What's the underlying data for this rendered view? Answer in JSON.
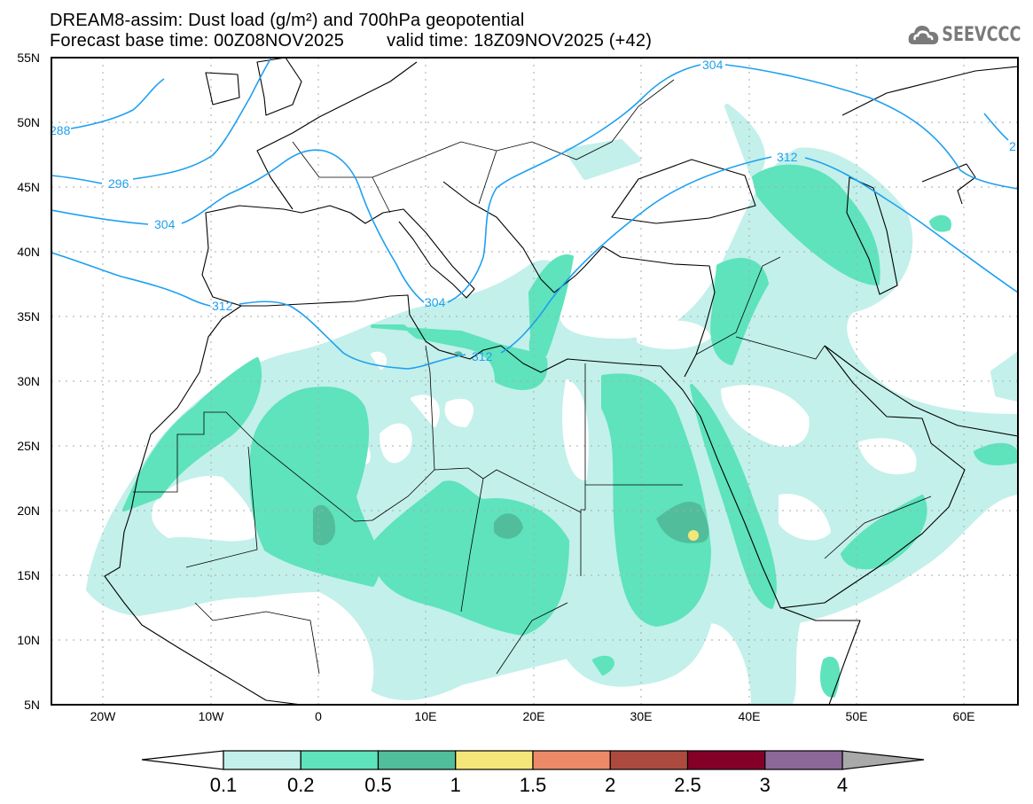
{
  "header": {
    "title": "DREAM8-assim: Dust load (g/m²) and 700hPa geopotential",
    "base_time": "Forecast base time: 00Z08NOV2025",
    "valid_time": "valid time: 18Z09NOV2025 (+42)"
  },
  "logo": {
    "text": "SEEVCCC",
    "icon": "cloud-icon"
  },
  "axes": {
    "lat_labels": [
      "55N",
      "50N",
      "45N",
      "40N",
      "35N",
      "30N",
      "25N",
      "20N",
      "15N",
      "10N",
      "5N"
    ],
    "lon_labels": [
      "20W",
      "10W",
      "0",
      "10E",
      "20E",
      "30E",
      "40E",
      "50E",
      "60E"
    ]
  },
  "contours": {
    "color": "#1ea0f0",
    "labels": [
      "288",
      "296",
      "304",
      "304",
      "304",
      "312",
      "312",
      "312",
      "2"
    ]
  },
  "colorbar": {
    "labels": [
      "0.1",
      "0.2",
      "0.5",
      "1",
      "1.5",
      "2",
      "2.5",
      "3",
      "4"
    ],
    "colors": [
      "#c3f0ea",
      "#5ee3bc",
      "#52bd9b",
      "#f5e67a",
      "#ec8a68",
      "#ad4a40",
      "#850028",
      "#8c6899"
    ],
    "under_color": "#ffffff",
    "over_color": "#a9a9a9"
  },
  "dust_colors": {
    "light": "#c3f0ea",
    "medium": "#5ee3bc",
    "dark": "#52bd9b",
    "peak": "#f5e67a"
  }
}
